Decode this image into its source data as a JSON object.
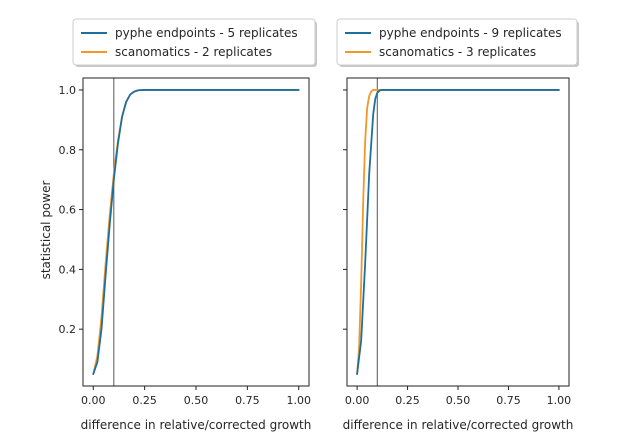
{
  "chart_data": [
    {
      "type": "line",
      "xlabel": "difference in relative/corrected growth",
      "ylabel": "statistical power",
      "xlim": [
        -0.05,
        1.05
      ],
      "ylim": [
        0.01,
        1.04
      ],
      "xticks": [
        "0.00",
        "0.25",
        "0.50",
        "0.75",
        "1.00"
      ],
      "yticks": [
        "0.2",
        "0.4",
        "0.6",
        "0.8",
        "1.0"
      ],
      "vline_x": 0.1,
      "grid": false,
      "legend_position": "above",
      "series": [
        {
          "name": "pyphe endpoints - 5 replicates",
          "color": "#1f6f9c",
          "x": [
            0.0,
            0.02,
            0.04,
            0.06,
            0.08,
            0.1,
            0.12,
            0.14,
            0.16,
            0.18,
            0.2,
            0.22,
            0.25,
            0.3,
            0.5,
            1.0
          ],
          "y": [
            0.05,
            0.09,
            0.2,
            0.38,
            0.55,
            0.7,
            0.82,
            0.91,
            0.96,
            0.985,
            0.995,
            0.999,
            1.0,
            1.0,
            1.0,
            1.0
          ]
        },
        {
          "name": "scanomatics - 2 replicates",
          "color": "#f0982b",
          "x": [
            0.0,
            0.02,
            0.04,
            0.06,
            0.08,
            0.1,
            0.12,
            0.14,
            0.16,
            0.18,
            0.2,
            0.22,
            0.25,
            0.3,
            0.5,
            1.0
          ],
          "y": [
            0.05,
            0.11,
            0.24,
            0.42,
            0.58,
            0.72,
            0.83,
            0.91,
            0.96,
            0.985,
            0.995,
            0.999,
            1.0,
            1.0,
            1.0,
            1.0
          ]
        }
      ]
    },
    {
      "type": "line",
      "xlabel": "difference in relative/corrected growth",
      "ylabel": "",
      "xlim": [
        -0.05,
        1.05
      ],
      "ylim": [
        0.01,
        1.04
      ],
      "xticks": [
        "0.00",
        "0.25",
        "0.50",
        "0.75",
        "1.00"
      ],
      "yticks": [
        "0.2",
        "0.4",
        "0.6",
        "0.8",
        "1.0"
      ],
      "vline_x": 0.1,
      "grid": false,
      "legend_position": "above",
      "series": [
        {
          "name": "pyphe endpoints - 9 replicates",
          "color": "#1f6f9c",
          "x": [
            0.0,
            0.02,
            0.04,
            0.06,
            0.08,
            0.09,
            0.1,
            0.11,
            0.12,
            0.14,
            0.2,
            0.5,
            1.0
          ],
          "y": [
            0.05,
            0.16,
            0.42,
            0.72,
            0.92,
            0.97,
            0.99,
            0.997,
            1.0,
            1.0,
            1.0,
            1.0,
            1.0
          ]
        },
        {
          "name": "scanomatics - 3 replicates",
          "color": "#f0982b",
          "x": [
            0.0,
            0.01,
            0.02,
            0.03,
            0.04,
            0.05,
            0.06,
            0.07,
            0.08,
            0.1,
            0.2,
            0.5,
            1.0
          ],
          "y": [
            0.05,
            0.14,
            0.35,
            0.62,
            0.83,
            0.94,
            0.98,
            0.995,
            1.0,
            1.0,
            1.0,
            1.0,
            1.0
          ]
        }
      ]
    }
  ]
}
